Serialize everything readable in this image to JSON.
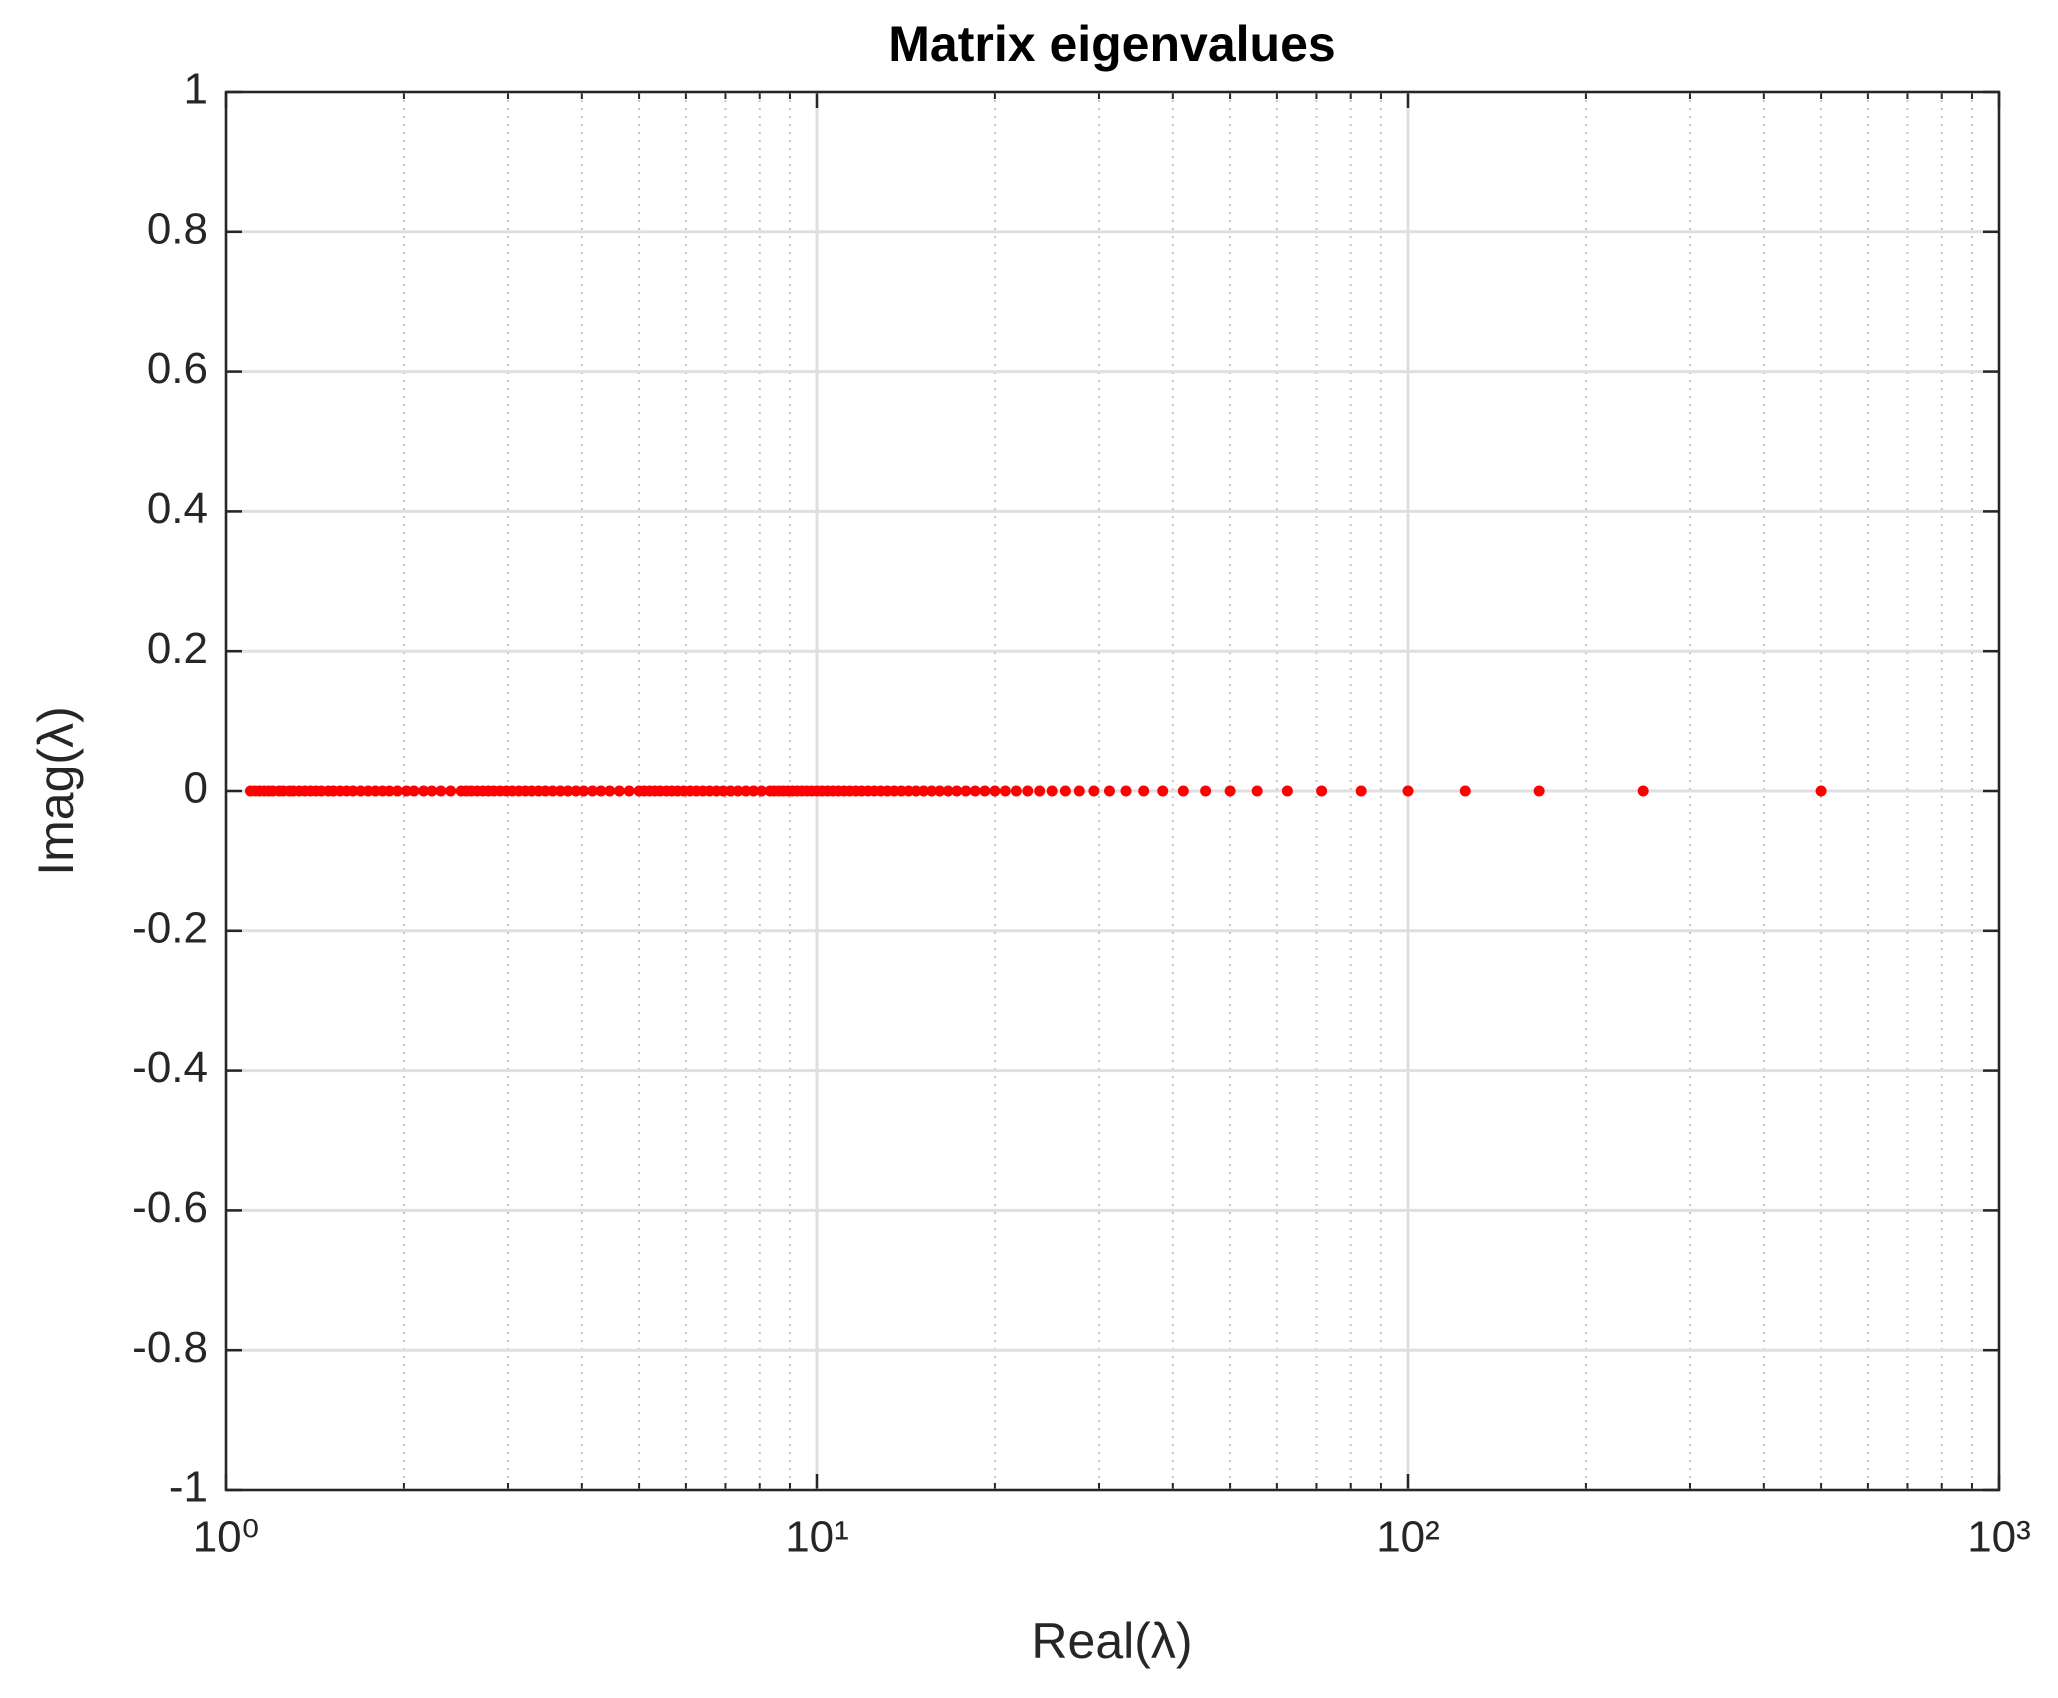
{
  "chart_data": {
    "type": "scatter",
    "title": "Matrix eigenvalues",
    "x_label": "Real(λ)",
    "y_label": "Imag(λ)",
    "x_scale": "log",
    "grid": true,
    "minor_grid": true,
    "color": "#ff0000",
    "xlim": [
      1,
      1000
    ],
    "xticks": [
      {
        "value": 1,
        "label": "10⁰"
      },
      {
        "value": 10,
        "label": "10¹"
      },
      {
        "value": 100,
        "label": "10²"
      },
      {
        "value": 1000,
        "label": "10³"
      }
    ],
    "xminorticks": [
      2,
      3,
      4,
      5,
      6,
      7,
      8,
      9,
      20,
      30,
      40,
      50,
      60,
      70,
      80,
      90,
      200,
      300,
      400,
      500,
      600,
      700,
      800,
      900
    ],
    "ylim": [
      -1,
      1
    ],
    "yticks": [
      -1,
      -0.8,
      -0.6,
      -0.4,
      -0.2,
      0,
      0.2,
      0.4,
      0.6,
      0.8,
      1
    ],
    "x": [
      500,
      250,
      166.67,
      125,
      100,
      83.33,
      71.43,
      62.5,
      55.56,
      50,
      45.45,
      41.67,
      38.46,
      35.71,
      33.33,
      31.25,
      29.41,
      27.78,
      26.32,
      25,
      23.81,
      22.73,
      21.74,
      20.83,
      20,
      19.23,
      18.52,
      17.86,
      17.24,
      16.67,
      16.13,
      15.63,
      15.15,
      14.71,
      14.29,
      13.89,
      13.51,
      13.16,
      12.82,
      12.5,
      12.2,
      11.9,
      11.63,
      11.36,
      11.11,
      10.87,
      10.64,
      10.42,
      10.2,
      10,
      9.8,
      9.62,
      9.43,
      9.26,
      9.09,
      8.93,
      8.77,
      8.62,
      8.47,
      8.33,
      8.06,
      7.81,
      7.58,
      7.35,
      7.14,
      6.94,
      6.76,
      6.58,
      6.41,
      6.25,
      6.1,
      5.95,
      5.81,
      5.68,
      5.56,
      5.43,
      5.32,
      5.21,
      5.1,
      5,
      4.81,
      4.63,
      4.46,
      4.31,
      4.17,
      4.03,
      3.91,
      3.79,
      3.68,
      3.57,
      3.47,
      3.38,
      3.29,
      3.21,
      3.13,
      3.05,
      2.98,
      2.91,
      2.84,
      2.78,
      2.72,
      2.66,
      2.6,
      2.55,
      2.5,
      2.4,
      2.31,
      2.23,
      2.16,
      2.08,
      2.02,
      1.95,
      1.89,
      1.84,
      1.79,
      1.74,
      1.69,
      1.64,
      1.6,
      1.56,
      1.52,
      1.49,
      1.45,
      1.42,
      1.39,
      1.36,
      1.33,
      1.3,
      1.28,
      1.25,
      1.23,
      1.2,
      1.18,
      1.16,
      1.14,
      1.12,
      1.1
    ],
    "values": [
      0,
      0,
      0,
      0,
      0,
      0,
      0,
      0,
      0,
      0,
      0,
      0,
      0,
      0,
      0,
      0,
      0,
      0,
      0,
      0,
      0,
      0,
      0,
      0,
      0,
      0,
      0,
      0,
      0,
      0,
      0,
      0,
      0,
      0,
      0,
      0,
      0,
      0,
      0,
      0,
      0,
      0,
      0,
      0,
      0,
      0,
      0,
      0,
      0,
      0,
      0,
      0,
      0,
      0,
      0,
      0,
      0,
      0,
      0,
      0,
      0,
      0,
      0,
      0,
      0,
      0,
      0,
      0,
      0,
      0,
      0,
      0,
      0,
      0,
      0,
      0,
      0,
      0,
      0,
      0,
      0,
      0,
      0,
      0,
      0,
      0,
      0,
      0,
      0,
      0,
      0,
      0,
      0,
      0,
      0,
      0,
      0,
      0,
      0,
      0,
      0,
      0,
      0,
      0,
      0,
      0,
      0,
      0,
      0,
      0,
      0,
      0,
      0,
      0,
      0,
      0,
      0,
      0,
      0,
      0,
      0,
      0,
      0,
      0,
      0,
      0,
      0,
      0,
      0,
      0,
      0,
      0,
      0,
      0,
      0,
      0,
      0
    ]
  }
}
